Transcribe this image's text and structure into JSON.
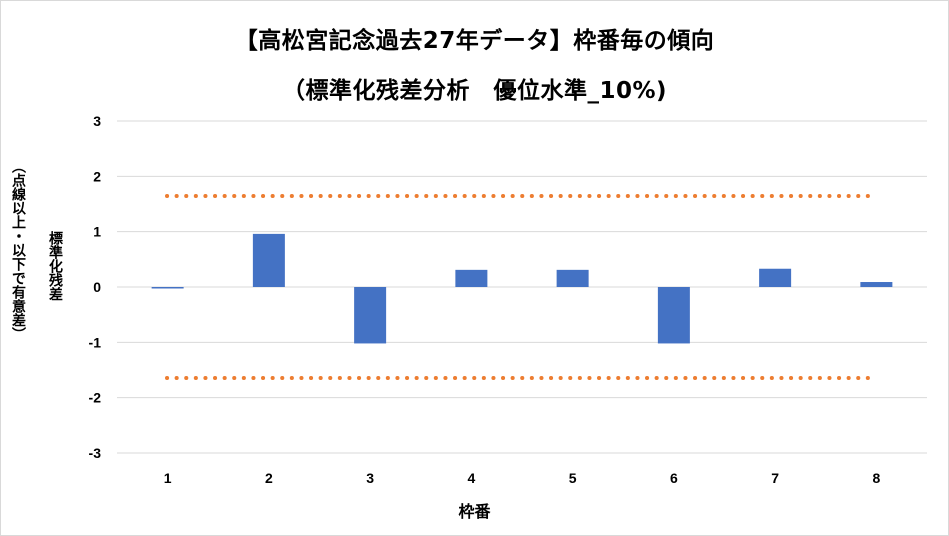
{
  "chart_data": {
    "type": "bar",
    "title": "【高松宮記念過去27年データ】枠番毎の傾向",
    "subtitle": "（標準化残差分析　優位水準_10%)",
    "xlabel": "枠番",
    "ylabel": "標準化残差",
    "ylabel_note": "（点線以上・以下で有意差）",
    "categories": [
      "1",
      "2",
      "3",
      "4",
      "5",
      "6",
      "7",
      "8"
    ],
    "values": [
      -0.02,
      0.96,
      -1.02,
      0.31,
      0.31,
      -1.02,
      0.33,
      0.09
    ],
    "ylim": [
      -3,
      3
    ],
    "yticks": [
      "3",
      "2",
      "1",
      "0",
      "-1",
      "-2",
      "-3"
    ],
    "threshold_lines": [
      1.645,
      -1.645
    ],
    "grid": true,
    "bar_color": "#4472C4",
    "threshold_color": "#ED7D31",
    "grid_color": "#D9D9D9"
  }
}
